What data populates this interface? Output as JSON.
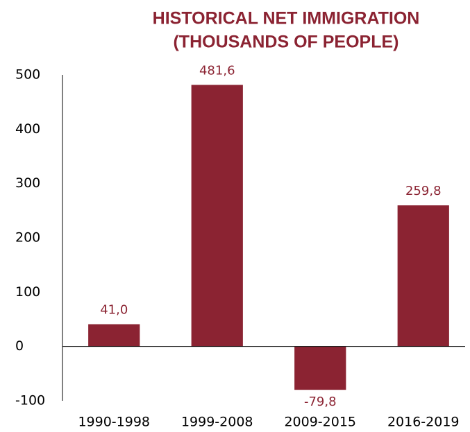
{
  "chart_data": {
    "type": "bar",
    "title": [
      "HISTORICAL NET IMMIGRATION",
      "(THOUSANDS OF PEOPLE)"
    ],
    "categories": [
      "1990-1998",
      "1999-2008",
      "2009-2015",
      "2016-2019"
    ],
    "values": [
      41.0,
      481.6,
      -79.8,
      259.8
    ],
    "value_labels": [
      "41,0",
      "481,6",
      "-79,8",
      "259,8"
    ],
    "color": "#8b2332",
    "ylim": [
      -100,
      500
    ],
    "yticks": [
      -100,
      0,
      100,
      200,
      300,
      400,
      500
    ],
    "grid": false
  }
}
